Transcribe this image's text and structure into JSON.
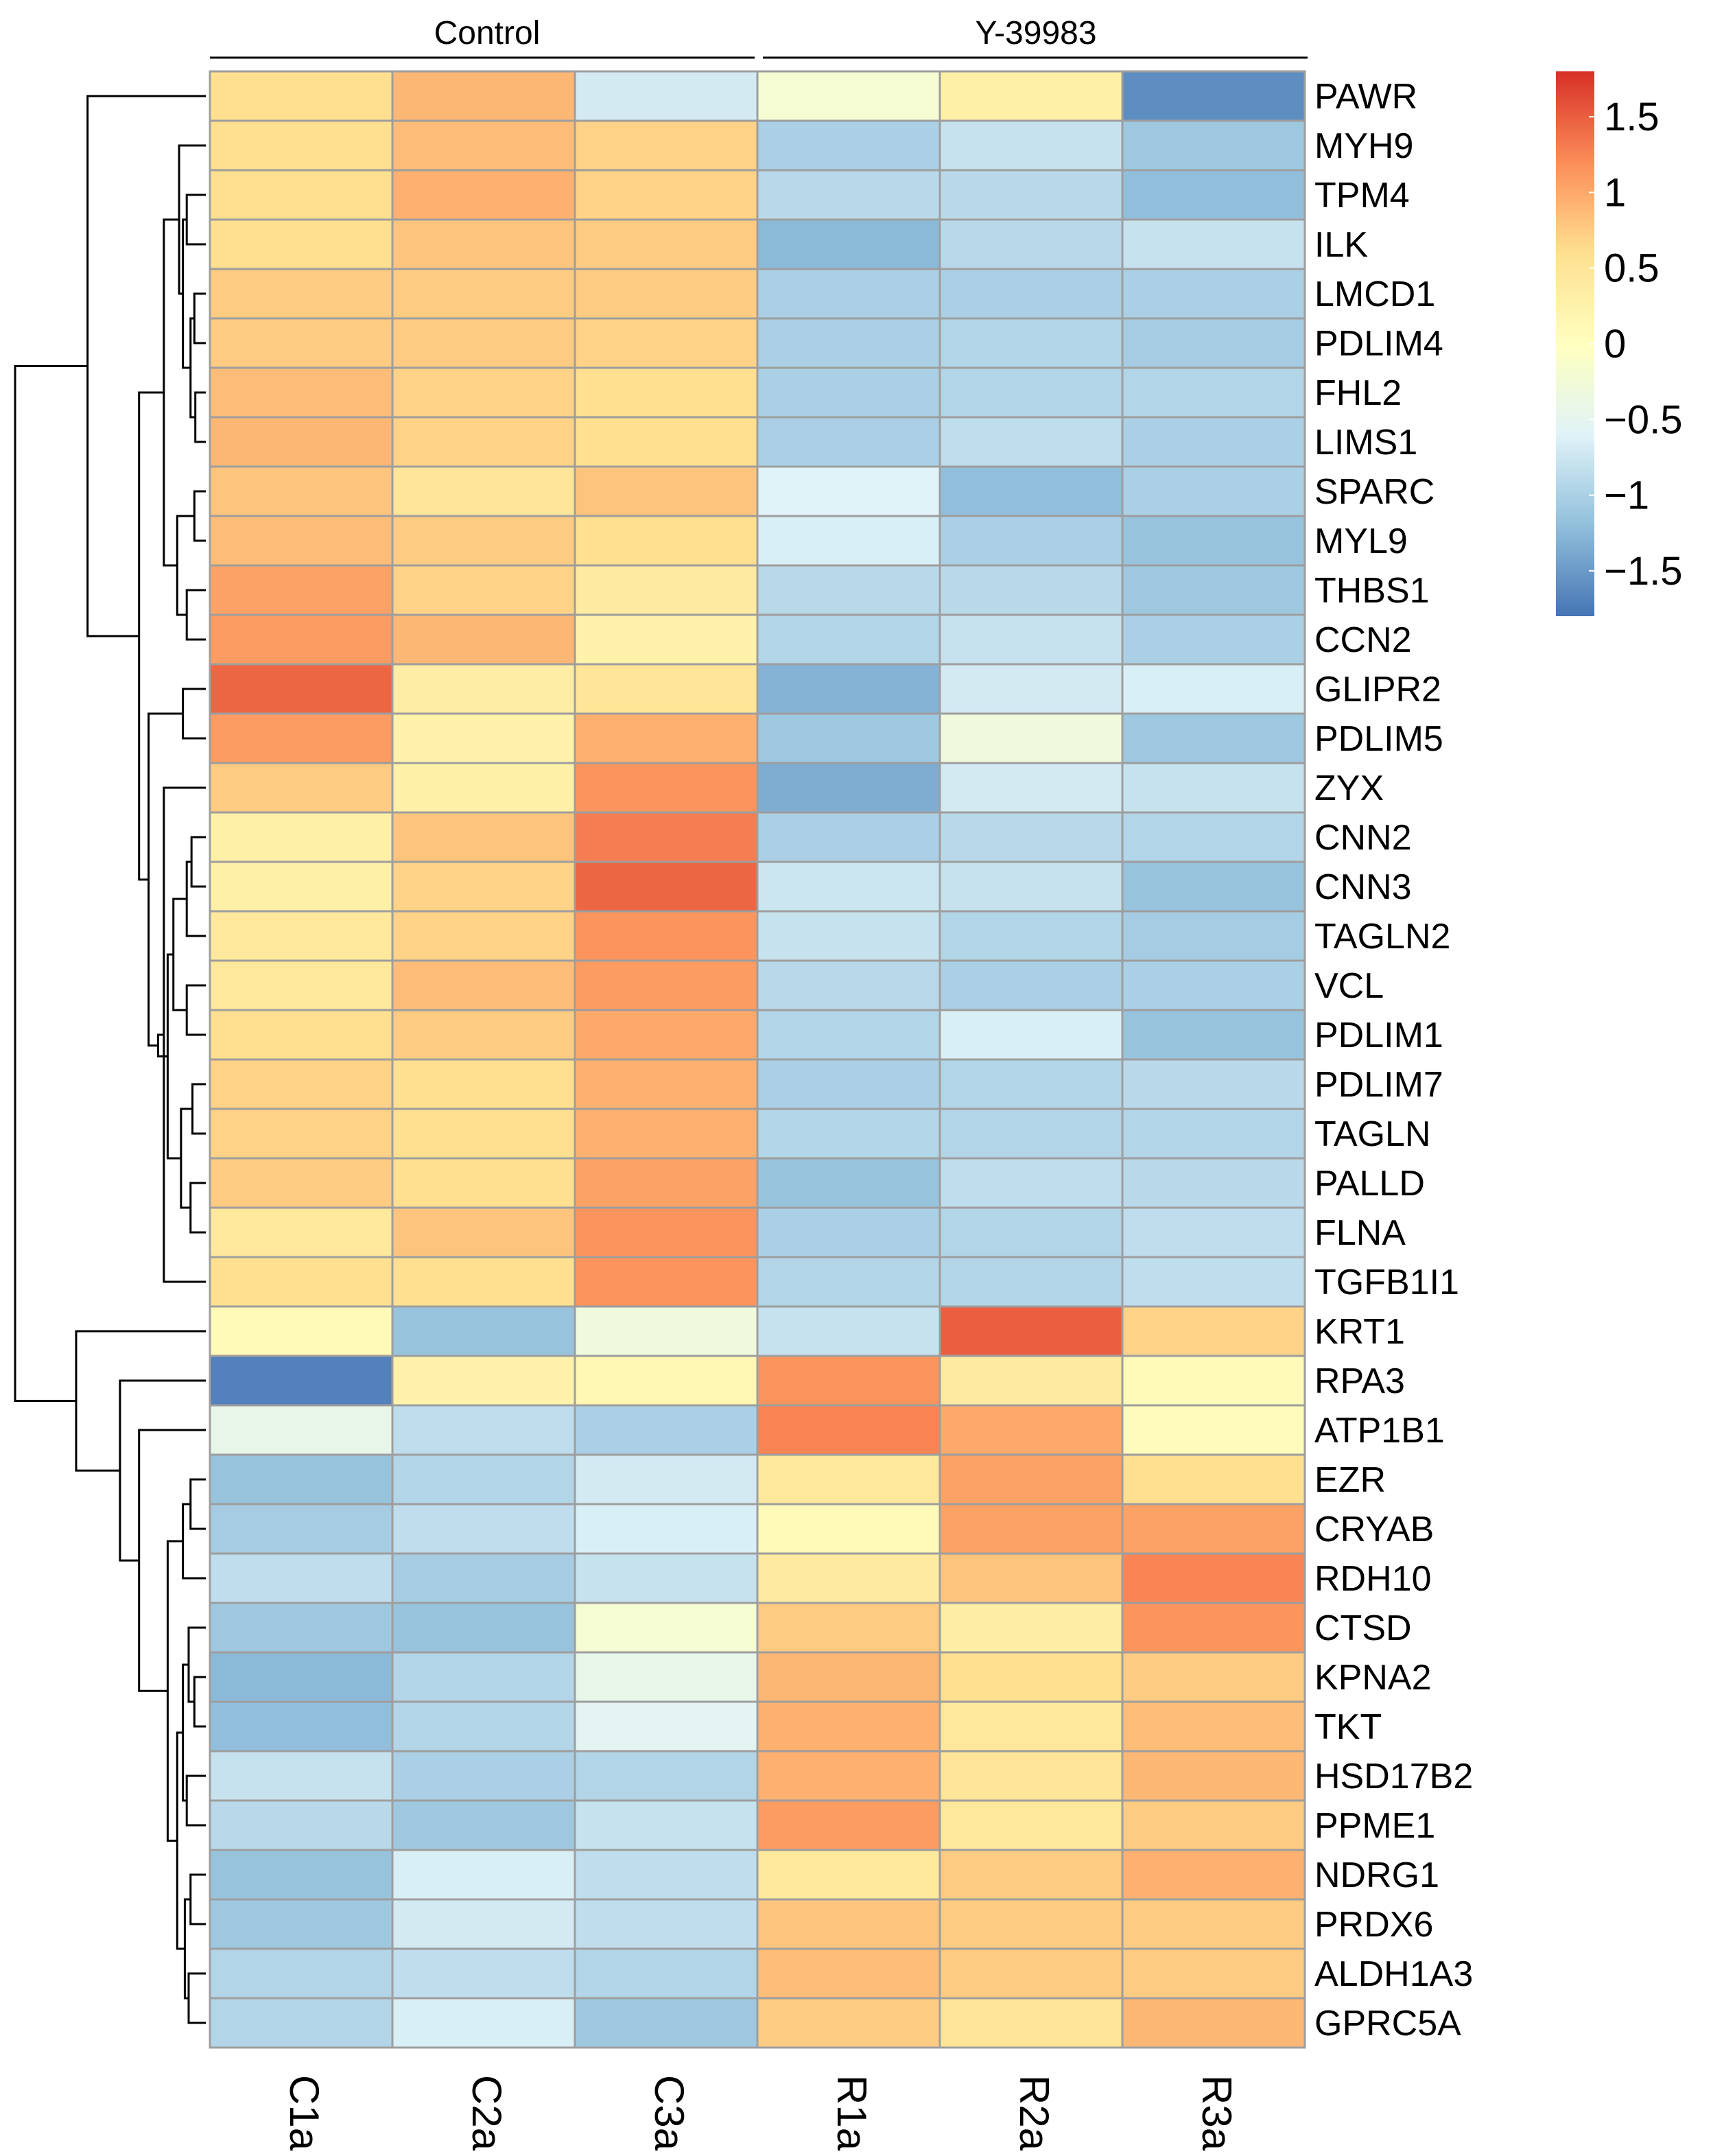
{
  "chart_data": {
    "type": "heatmap",
    "title": "",
    "groups": [
      {
        "name": "Control",
        "columns": [
          "C1a",
          "C2a",
          "C3a"
        ]
      },
      {
        "name": "Y-39983",
        "columns": [
          "R1a",
          "R2a",
          "R3a"
        ]
      }
    ],
    "columns": [
      "C1a",
      "C2a",
      "C3a",
      "R1a",
      "R2a",
      "R3a"
    ],
    "rows": [
      "PAWR",
      "MYH9",
      "TPM4",
      "ILK",
      "LMCD1",
      "PDLIM4",
      "FHL2",
      "LIMS1",
      "SPARC",
      "MYL9",
      "THBS1",
      "CCN2",
      "GLIPR2",
      "PDLIM5",
      "ZYX",
      "CNN2",
      "CNN3",
      "TAGLN2",
      "VCL",
      "PDLIM1",
      "PDLIM7",
      "TAGLN",
      "PALLD",
      "FLNA",
      "TGFB1I1",
      "KRT1",
      "RPA3",
      "ATP1B1",
      "EZR",
      "CRYAB",
      "RDH10",
      "CTSD",
      "KPNA2",
      "TKT",
      "HSD17B2",
      "PPME1",
      "NDRG1",
      "PRDX6",
      "ALDH1A3",
      "GPRC5A"
    ],
    "values": [
      [
        0.6,
        0.9,
        -0.7,
        -0.2,
        0.3,
        -1.6
      ],
      [
        0.6,
        0.85,
        0.7,
        -1.0,
        -0.8,
        -1.1
      ],
      [
        0.6,
        0.95,
        0.7,
        -0.9,
        -0.9,
        -1.2
      ],
      [
        0.6,
        0.8,
        0.75,
        -1.25,
        -0.9,
        -0.8
      ],
      [
        0.75,
        0.75,
        0.75,
        -1.0,
        -1.0,
        -1.0
      ],
      [
        0.75,
        0.75,
        0.7,
        -1.0,
        -0.95,
        -1.05
      ],
      [
        0.85,
        0.7,
        0.6,
        -1.0,
        -0.95,
        -0.95
      ],
      [
        0.9,
        0.7,
        0.6,
        -1.0,
        -0.85,
        -1.0
      ],
      [
        0.8,
        0.5,
        0.8,
        -0.6,
        -1.2,
        -1.0
      ],
      [
        0.85,
        0.75,
        0.6,
        -0.65,
        -1.0,
        -1.15
      ],
      [
        1.05,
        0.7,
        0.4,
        -0.9,
        -0.9,
        -1.1
      ],
      [
        1.1,
        0.9,
        0.25,
        -0.95,
        -0.8,
        -1.0
      ],
      [
        1.45,
        0.35,
        0.5,
        -1.3,
        -0.7,
        -0.65
      ],
      [
        1.1,
        0.25,
        0.95,
        -1.1,
        -0.3,
        -1.1
      ],
      [
        0.75,
        0.3,
        1.15,
        -1.35,
        -0.7,
        -0.8
      ],
      [
        0.3,
        0.8,
        1.3,
        -1.0,
        -0.9,
        -0.95
      ],
      [
        0.3,
        0.7,
        1.45,
        -0.75,
        -0.8,
        -1.15
      ],
      [
        0.45,
        0.7,
        1.15,
        -0.8,
        -0.95,
        -1.05
      ],
      [
        0.45,
        0.85,
        1.1,
        -0.9,
        -1.0,
        -1.0
      ],
      [
        0.6,
        0.75,
        1.0,
        -0.95,
        -0.65,
        -1.15
      ],
      [
        0.7,
        0.6,
        0.95,
        -1.0,
        -0.95,
        -0.9
      ],
      [
        0.7,
        0.6,
        0.95,
        -0.95,
        -0.95,
        -0.95
      ],
      [
        0.75,
        0.6,
        1.05,
        -1.15,
        -0.85,
        -0.9
      ],
      [
        0.45,
        0.8,
        1.15,
        -1.0,
        -0.95,
        -0.85
      ],
      [
        0.6,
        0.6,
        1.15,
        -0.95,
        -0.95,
        -0.85
      ],
      [
        0.1,
        -1.15,
        -0.3,
        -0.8,
        1.5,
        0.7
      ],
      [
        -1.7,
        0.25,
        0.15,
        1.15,
        0.4,
        0.1
      ],
      [
        -0.45,
        -0.85,
        -1.0,
        1.25,
        1.0,
        0.05
      ],
      [
        -1.15,
        -0.95,
        -0.7,
        0.45,
        1.05,
        0.6
      ],
      [
        -1.05,
        -0.85,
        -0.65,
        0.1,
        1.05,
        1.05
      ],
      [
        -0.85,
        -1.05,
        -0.8,
        0.4,
        0.8,
        1.25
      ],
      [
        -1.1,
        -1.15,
        -0.2,
        0.75,
        0.35,
        1.15
      ],
      [
        -1.25,
        -0.95,
        -0.45,
        0.9,
        0.6,
        0.75
      ],
      [
        -1.2,
        -0.95,
        -0.55,
        0.95,
        0.45,
        0.85
      ],
      [
        -0.8,
        -1.0,
        -0.95,
        0.95,
        0.5,
        0.9
      ],
      [
        -0.9,
        -1.1,
        -0.8,
        1.1,
        0.45,
        0.75
      ],
      [
        -1.15,
        -0.65,
        -0.85,
        0.45,
        0.75,
        0.95
      ],
      [
        -1.1,
        -0.7,
        -0.85,
        0.8,
        0.75,
        0.75
      ],
      [
        -0.95,
        -0.85,
        -0.95,
        0.85,
        0.75,
        0.75
      ],
      [
        -0.95,
        -0.65,
        -1.1,
        0.75,
        0.5,
        0.9
      ]
    ],
    "color_scale": {
      "min": -1.8,
      "max": 1.8,
      "stops": [
        {
          "v": -1.8,
          "c": "#4575b4"
        },
        {
          "v": -1.2,
          "c": "#91bfdb"
        },
        {
          "v": -0.6,
          "c": "#e0f3f8"
        },
        {
          "v": 0.0,
          "c": "#ffffbf"
        },
        {
          "v": 0.6,
          "c": "#fee090"
        },
        {
          "v": 1.2,
          "c": "#fc8d59"
        },
        {
          "v": 1.8,
          "c": "#d73027"
        }
      ]
    },
    "legend": {
      "ticks": [
        1.5,
        1,
        0.5,
        0,
        -0.5,
        -1,
        -1.5
      ],
      "tick_labels": [
        "1.5",
        "1",
        "0.5",
        "0",
        "−0.5",
        "−1",
        "−1.5"
      ]
    },
    "row_dendrogram": {
      "merges": [
        [
          0.6,
          4,
          5
        ],
        [
          0.55,
          6,
          7
        ],
        [
          0.8,
          40,
          41
        ],
        [
          1.0,
          2,
          3
        ],
        [
          1.2,
          42,
          43
        ],
        [
          1.4,
          1,
          44
        ],
        [
          0.6,
          8,
          9
        ],
        [
          1.0,
          10,
          11
        ],
        [
          1.5,
          46,
          47
        ],
        [
          2.2,
          45,
          48
        ],
        [
          1.2,
          12,
          13
        ],
        [
          1.0,
          18,
          19
        ],
        [
          0.7,
          20,
          21
        ],
        [
          0.8,
          22,
          23
        ],
        [
          1.3,
          52,
          53
        ],
        [
          0.75,
          15,
          16
        ],
        [
          1.0,
          55,
          17
        ],
        [
          1.7,
          51,
          56
        ],
        [
          2.0,
          54,
          57
        ],
        [
          2.2,
          14,
          24
        ],
        [
          2.5,
          58,
          59
        ],
        [
          3.0,
          50,
          60
        ],
        [
          3.5,
          49,
          61
        ],
        [
          6.2,
          0,
          62
        ],
        [
          0.8,
          28,
          29
        ],
        [
          1.2,
          64,
          30
        ],
        [
          0.6,
          32,
          33
        ],
        [
          0.9,
          66,
          31
        ],
        [
          1.0,
          34,
          35
        ],
        [
          1.2,
          67,
          68
        ],
        [
          0.8,
          36,
          37
        ],
        [
          0.9,
          38,
          39
        ],
        [
          1.1,
          70,
          71
        ],
        [
          1.5,
          69,
          72
        ],
        [
          2.0,
          65,
          73
        ],
        [
          3.5,
          27,
          74
        ],
        [
          4.5,
          26,
          75
        ],
        [
          6.8,
          25,
          76
        ],
        [
          10.0,
          63,
          77
        ]
      ]
    }
  }
}
